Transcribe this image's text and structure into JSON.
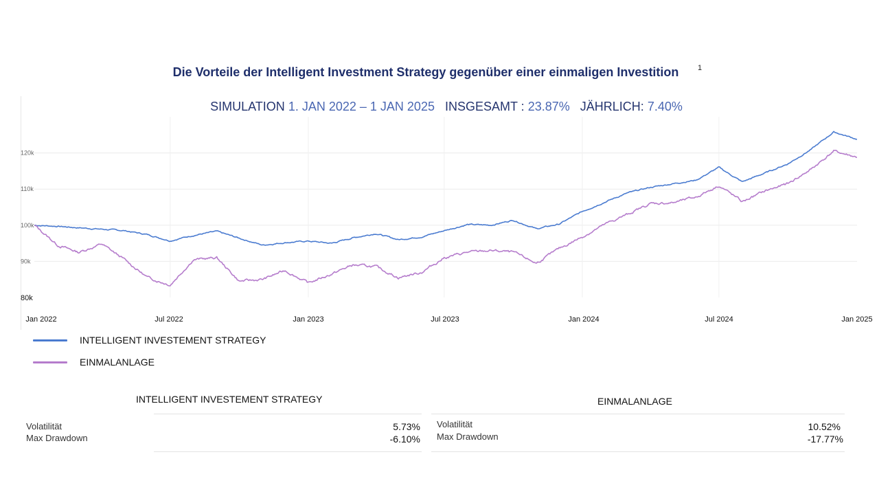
{
  "header": {
    "title": "Die Vorteile der Intelligent Investment Strategy gegenüber einer einmaligen Investition",
    "footnote": "1",
    "subtitle": {
      "label_sim": "SIMULATION",
      "period": "1. JAN 2022 – 1 JAN 2025",
      "label_total": "INSGESAMT :",
      "total": "23.87%",
      "label_annual": "JÄHRLICH:",
      "annual": "7.40%"
    }
  },
  "colors": {
    "strategy": "#4a7bd0",
    "single": "#b57ccc",
    "title": "#1f2f6b",
    "highlight": "#4a67b2"
  },
  "chart_data": {
    "type": "line",
    "x_ticks": [
      "Jan 2022",
      "Jul 2022",
      "Jan 2023",
      "Jul 2023",
      "Jan 2024",
      "Jul 2024",
      "Jan 2025"
    ],
    "y_ticks": [
      {
        "value": 80000,
        "label": "80k"
      },
      {
        "value": 90000,
        "label": "90k"
      },
      {
        "value": 100000,
        "label": "100k"
      },
      {
        "value": 110000,
        "label": "110k"
      },
      {
        "value": 120000,
        "label": "120k"
      }
    ],
    "ylim": [
      80000,
      130000
    ],
    "grid": true,
    "legend_position": "bottom-left",
    "series": [
      {
        "name": "INTELLIGENT INVESTEMENT STRATEGY",
        "color": "#4a7bd0",
        "points": [
          [
            "2022-01-01",
            100000
          ],
          [
            "2022-02-01",
            99700
          ],
          [
            "2022-03-01",
            99300
          ],
          [
            "2022-04-01",
            98900
          ],
          [
            "2022-05-01",
            98500
          ],
          [
            "2022-06-01",
            97400
          ],
          [
            "2022-07-01",
            95700
          ],
          [
            "2022-08-01",
            97200
          ],
          [
            "2022-09-01",
            98300
          ],
          [
            "2022-10-01",
            96400
          ],
          [
            "2022-11-01",
            94500
          ],
          [
            "2022-12-01",
            95200
          ],
          [
            "2023-01-01",
            95600
          ],
          [
            "2023-02-01",
            95000
          ],
          [
            "2023-03-01",
            96500
          ],
          [
            "2023-04-01",
            97700
          ],
          [
            "2023-05-01",
            96000
          ],
          [
            "2023-06-01",
            96800
          ],
          [
            "2023-07-01",
            98500
          ],
          [
            "2023-08-01",
            100200
          ],
          [
            "2023-09-01",
            100000
          ],
          [
            "2023-10-01",
            101400
          ],
          [
            "2023-11-01",
            99000
          ],
          [
            "2023-12-01",
            100300
          ],
          [
            "2024-01-01",
            103800
          ],
          [
            "2024-02-01",
            106500
          ],
          [
            "2024-03-01",
            108900
          ],
          [
            "2024-04-01",
            110500
          ],
          [
            "2024-05-01",
            111500
          ],
          [
            "2024-06-01",
            112500
          ],
          [
            "2024-07-01",
            116000
          ],
          [
            "2024-08-01",
            112000
          ],
          [
            "2024-09-01",
            114500
          ],
          [
            "2024-10-01",
            117000
          ],
          [
            "2024-11-01",
            121000
          ],
          [
            "2024-12-01",
            125800
          ],
          [
            "2025-01-01",
            123800
          ]
        ]
      },
      {
        "name": "EINMALANLAGE",
        "color": "#b57ccc",
        "points": [
          [
            "2022-01-01",
            100000
          ],
          [
            "2022-02-01",
            94500
          ],
          [
            "2022-03-01",
            92500
          ],
          [
            "2022-04-01",
            94800
          ],
          [
            "2022-05-01",
            90500
          ],
          [
            "2022-06-01",
            85500
          ],
          [
            "2022-07-01",
            83500
          ],
          [
            "2022-08-01",
            90500
          ],
          [
            "2022-09-01",
            91000
          ],
          [
            "2022-10-01",
            84500
          ],
          [
            "2022-11-01",
            85000
          ],
          [
            "2022-12-01",
            87500
          ],
          [
            "2023-01-01",
            84000
          ],
          [
            "2023-02-01",
            86500
          ],
          [
            "2023-03-01",
            89000
          ],
          [
            "2023-04-01",
            88500
          ],
          [
            "2023-05-01",
            85500
          ],
          [
            "2023-06-01",
            87000
          ],
          [
            "2023-07-01",
            91000
          ],
          [
            "2023-08-01",
            92500
          ],
          [
            "2023-09-01",
            93000
          ],
          [
            "2023-10-01",
            92500
          ],
          [
            "2023-11-01",
            89500
          ],
          [
            "2023-12-01",
            93500
          ],
          [
            "2024-01-01",
            96800
          ],
          [
            "2024-02-01",
            100300
          ],
          [
            "2024-03-01",
            103000
          ],
          [
            "2024-04-01",
            106000
          ],
          [
            "2024-05-01",
            106200
          ],
          [
            "2024-06-01",
            107800
          ],
          [
            "2024-07-01",
            111000
          ],
          [
            "2024-08-01",
            106500
          ],
          [
            "2024-09-01",
            109500
          ],
          [
            "2024-10-01",
            111500
          ],
          [
            "2024-11-01",
            115500
          ],
          [
            "2024-12-01",
            120500
          ],
          [
            "2025-01-01",
            118800
          ]
        ]
      }
    ]
  },
  "stats": {
    "strategy": {
      "title": "INTELLIGENT INVESTEMENT STRATEGY",
      "volatility_label": "Volatilität",
      "volatility": "5.73%",
      "drawdown_label": "Max Drawdown",
      "drawdown": "-6.10%"
    },
    "single": {
      "title": "EINMALANLAGE",
      "volatility_label": "Volatilität",
      "volatility": "10.52%",
      "drawdown_label": "Max Drawdown",
      "drawdown": "-17.77%"
    }
  }
}
